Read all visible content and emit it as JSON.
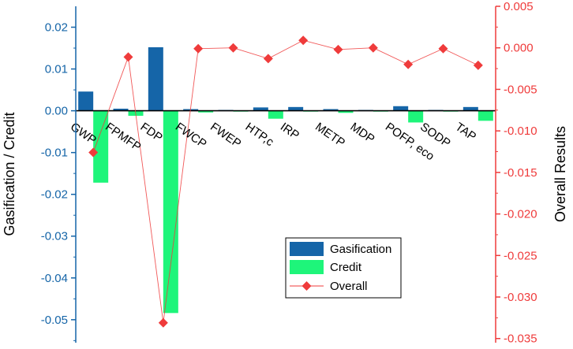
{
  "chart_data": {
    "type": "bar",
    "categories": [
      "GWP",
      "FPMFP",
      "FDP",
      "FWCP",
      "FWEP",
      "HTP,c",
      "IRP",
      "METP",
      "MDP",
      "POFP, eco",
      "SODP",
      "TAP"
    ],
    "series": [
      {
        "name": "Gasification",
        "axis": "left",
        "kind": "bar",
        "values": [
          0.0046,
          0.0005,
          0.0152,
          0.0004,
          0.0002,
          0.0008,
          0.0009,
          0.0004,
          0.0002,
          0.0011,
          0.0002,
          0.0009
        ]
      },
      {
        "name": "Credit",
        "axis": "left",
        "kind": "bar",
        "values": [
          -0.0172,
          -0.0012,
          -0.0484,
          -0.0004,
          -0.0002,
          -0.0019,
          -0.0002,
          -0.0005,
          -0.0002,
          -0.0028,
          -0.0002,
          -0.0024
        ]
      },
      {
        "name": "Overall",
        "axis": "right",
        "kind": "line",
        "values": [
          -0.0126,
          -0.0011,
          -0.0331,
          -0.0001,
          0.0,
          -0.0013,
          0.0009,
          -0.0002,
          0.0,
          -0.002,
          -0.0001,
          -0.0021
        ]
      }
    ],
    "ylabel": "Gasification / Credit",
    "y2label": "Overall Results",
    "ylim": [
      -0.0555,
      0.025
    ],
    "y2lim": [
      -0.0355,
      0.005
    ],
    "yticks": [
      "0.02",
      "0.01",
      "0.00",
      "-0.01",
      "-0.02",
      "-0.03",
      "-0.04",
      "-0.05"
    ],
    "y2ticks": [
      "0.005",
      "0.000",
      "-0.005",
      "-0.010",
      "-0.015",
      "-0.020",
      "-0.025",
      "-0.030",
      "-0.035"
    ],
    "legend": [
      "Gasification",
      "Credit",
      "Overall"
    ],
    "legend_position": "lower-right",
    "grid": false,
    "colors": {
      "gasification": "#1565a8",
      "credit": "#1ef57a",
      "overall": "#ef3b3b",
      "left_axis": "#1565a8",
      "right_axis": "#ef3b3b"
    }
  }
}
